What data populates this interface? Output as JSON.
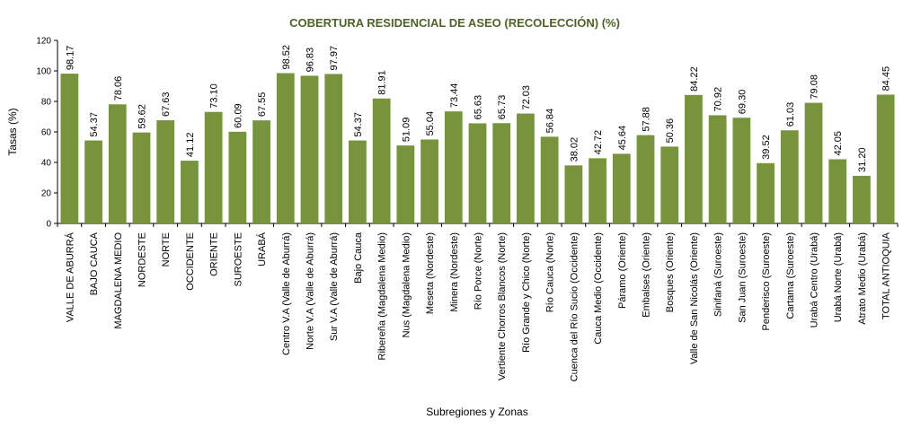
{
  "chart_data": {
    "type": "bar",
    "title": "COBERTURA RESIDENCIAL DE ASEO (RECOLECCIÓN) (%)",
    "xlabel": "Subregiones y Zonas",
    "ylabel": "Tasas (%)",
    "ylim": [
      0,
      120
    ],
    "yticks": [
      0,
      20,
      40,
      60,
      80,
      100,
      120
    ],
    "grid": false,
    "legend": "none",
    "categories": [
      "VALLE DE ABURRÁ",
      "BAJO CAUCA",
      "MAGDALENA MEDIO",
      "NORDESTE",
      "NORTE",
      "OCCIDENTE",
      "ORIENTE",
      "SUROESTE",
      "URABÁ",
      "Centro V.A (Valle de Aburrá)",
      "Norte V.A (Valle de Aburrá)",
      "Sur V.A (Valle de Aburrá)",
      "Bajo Cauca",
      "Ribereña (Magdalena Medio)",
      "Nus (Magdalena Medio)",
      "Meseta (Nordeste)",
      "Minera (Nordeste)",
      "Río Porce (Norte)",
      "Vertiente Chorros Blancos (Norte)",
      "Río Grande y Chico (Norte)",
      "Río Cauca (Norte)",
      "Cuenca del Río Sucio (Occidente)",
      "Cauca Medio (Occidente)",
      "Páramo (Oriente)",
      "Embalses (Oriente)",
      "Bosques (Oriente)",
      "Valle de San Nicolás (Oriente)",
      "Sinifaná (Suroeste)",
      "San Juan (Suroeste)",
      "Penderisco (Suroeste)",
      "Cartama (Suroeste)",
      "Urabá Centro (Urabá)",
      "Urabá Norte (Urabá)",
      "Atrato Medio (Urabá)",
      "TOTAL ANTIOQUIA"
    ],
    "values": [
      98.17,
      54.37,
      78.06,
      59.62,
      67.63,
      41.12,
      73.1,
      60.09,
      67.55,
      98.52,
      96.83,
      97.97,
      54.37,
      81.91,
      51.09,
      55.04,
      73.44,
      65.63,
      65.73,
      72.03,
      56.84,
      38.02,
      42.72,
      45.64,
      57.88,
      50.36,
      84.22,
      70.92,
      69.3,
      39.52,
      61.03,
      79.08,
      42.05,
      31.2,
      84.45
    ],
    "data_labels": [
      "98.17",
      "54.37",
      "78.06",
      "59.62",
      "67.63",
      "41.12",
      "73.10",
      "60.09",
      "67.55",
      "98.52",
      "96.83",
      "97.97",
      "54.37",
      "81.91",
      "51.09",
      "55.04",
      "73.44",
      "65.63",
      "65.73",
      "72.03",
      "56.84",
      "38.02",
      "42.72",
      "45.64",
      "57.88",
      "50.36",
      "84.22",
      "70.92",
      "69.30",
      "39.52",
      "61.03",
      "79.08",
      "42.05",
      "31.20",
      "84.45"
    ],
    "colors": {
      "bar": "#77933c",
      "title": "#4f6228",
      "axis": "#000000"
    }
  }
}
